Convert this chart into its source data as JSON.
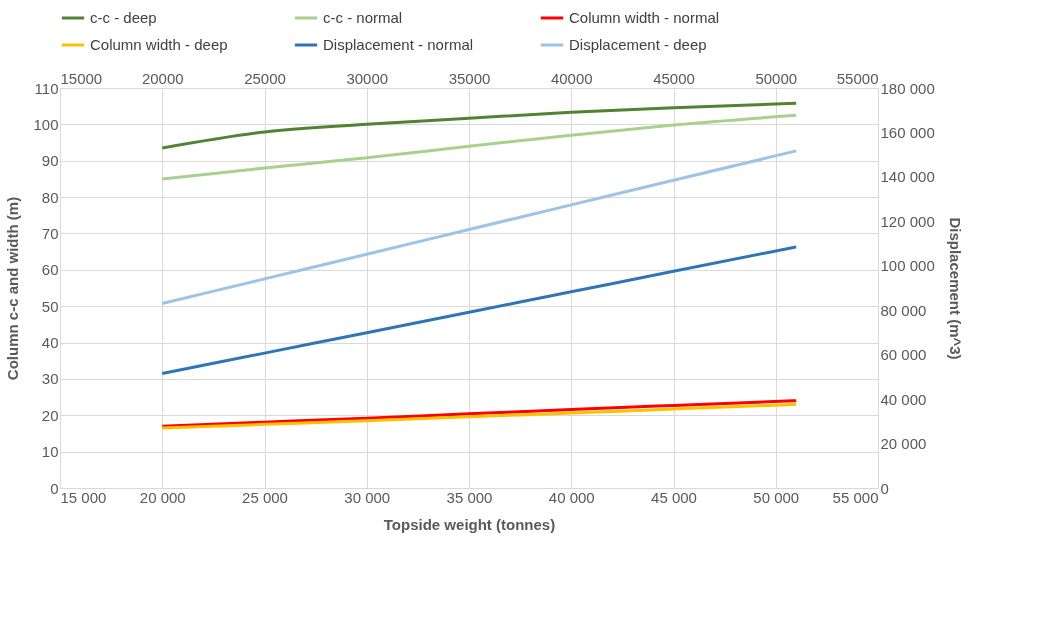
{
  "chart_data": {
    "type": "line",
    "xlabel": "Topside weight (tonnes)",
    "ylabel": "Column c-c and width (m)",
    "y2label": "Displacement (m^3)",
    "x": [
      20000,
      25000,
      30000,
      35000,
      40000,
      45000,
      51000
    ],
    "series": [
      {
        "name": "c-c - deep",
        "color": "#548235",
        "values": [
          93.5,
          97.9,
          100,
          101.7,
          103.3,
          104.6,
          105.8
        ]
      },
      {
        "name": "c-c - normal",
        "color": "#a9d18e",
        "values": [
          85,
          88,
          90.8,
          94,
          97,
          99.8,
          102.5
        ]
      },
      {
        "name": "Column width - normal",
        "color": "#ff0000",
        "values": [
          17,
          18.1,
          19.2,
          20.4,
          21.6,
          22.7,
          24
        ]
      },
      {
        "name": "Column width - deep",
        "color": "#ffc000",
        "values": [
          16.5,
          17.5,
          18.5,
          19.6,
          20.6,
          21.7,
          23
        ]
      },
      {
        "name": "Displacement - normal",
        "color": "#2e75b6",
        "axis": "y2",
        "values": [
          51500,
          60700,
          69900,
          79100,
          88300,
          97500,
          108500
        ]
      },
      {
        "name": "Displacement - deep",
        "color": "#9dc3e6",
        "axis": "y2",
        "values": [
          83000,
          94100,
          105200,
          116300,
          127400,
          138500,
          151700
        ]
      }
    ],
    "xlim": [
      15000,
      55000
    ],
    "xticks": [
      {
        "value": 15000,
        "label": "15 000"
      },
      {
        "value": 20000,
        "label": "20 000"
      },
      {
        "value": 25000,
        "label": "25 000"
      },
      {
        "value": 30000,
        "label": "30 000"
      },
      {
        "value": 35000,
        "label": "35 000"
      },
      {
        "value": 40000,
        "label": "40 000"
      },
      {
        "value": 45000,
        "label": "45 000"
      },
      {
        "value": 50000,
        "label": "50 000"
      },
      {
        "value": 55000,
        "label": "55 000"
      }
    ],
    "x2lim": [
      15000,
      55000
    ],
    "x2ticks": [
      15000,
      20000,
      25000,
      30000,
      35000,
      40000,
      45000,
      50000,
      55000
    ],
    "ylim": [
      0,
      110
    ],
    "yticks": [
      0,
      10,
      20,
      30,
      40,
      50,
      60,
      70,
      80,
      90,
      100,
      110
    ],
    "y2lim": [
      0,
      180000
    ],
    "y2ticks": [
      0,
      {
        "value": 20000,
        "label": "20 000"
      },
      {
        "value": 40000,
        "label": "40 000"
      },
      {
        "value": 60000,
        "label": "60 000"
      },
      {
        "value": 80000,
        "label": "80 000"
      },
      {
        "value": 100000,
        "label": "100 000"
      },
      {
        "value": 120000,
        "label": "120 000"
      },
      {
        "value": 140000,
        "label": "140 000"
      },
      {
        "value": 160000,
        "label": "160 000"
      },
      {
        "value": 180000,
        "label": "180 000"
      }
    ],
    "grid": true,
    "legend": "top",
    "marker": "none",
    "line_style": "solid"
  }
}
